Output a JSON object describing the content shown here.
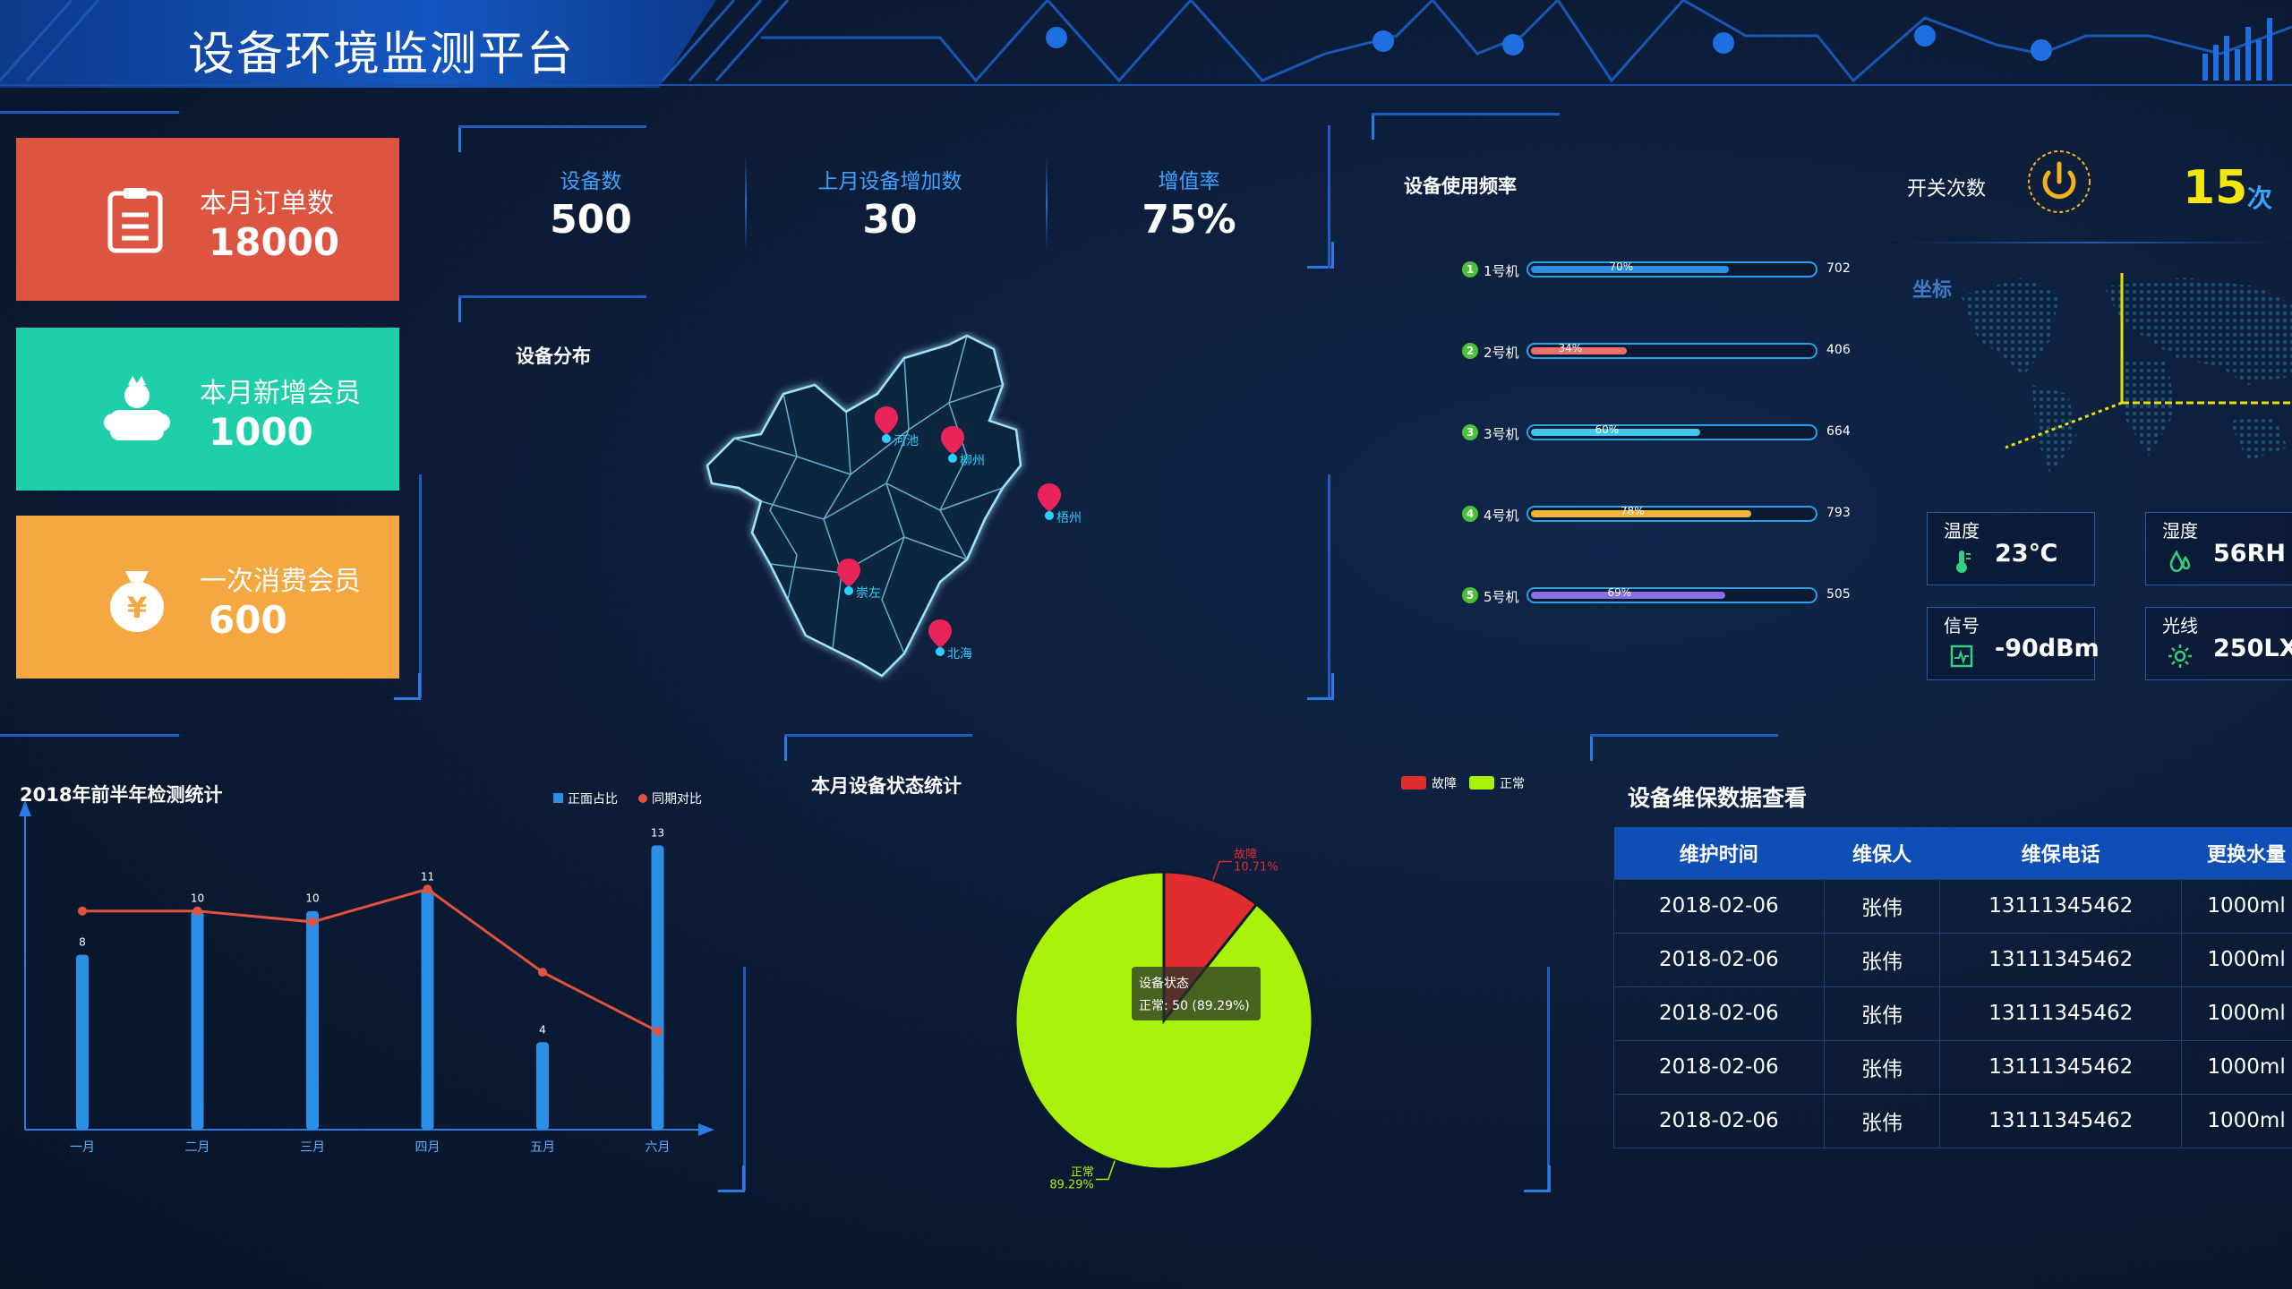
{
  "header": {
    "title": "设备环境监测平台"
  },
  "kpis": [
    {
      "label": "本月订单数",
      "value": "18000",
      "color": "#dd5441",
      "icon": "clipboard-icon"
    },
    {
      "label": "本月新增会员",
      "value": "1000",
      "color": "#1fcfaa",
      "icon": "member-icon"
    },
    {
      "label": "一次消费会员",
      "value": "600",
      "color": "#f5a741",
      "icon": "money-bag-icon"
    }
  ],
  "stats": [
    {
      "label": "设备数",
      "value": "500"
    },
    {
      "label": "上月设备增加数",
      "value": "30"
    },
    {
      "label": "增值率",
      "value": "75%"
    }
  ],
  "distribution": {
    "title": "设备分布",
    "markers": [
      "河池",
      "柳州",
      "梧州",
      "崇左",
      "北海"
    ]
  },
  "usage": {
    "title": "设备使用频率",
    "items": [
      {
        "rank": "1",
        "name": "1号机",
        "pct": 70,
        "pct_label": "70%",
        "value": "702",
        "color": "#2b8fe6"
      },
      {
        "rank": "2",
        "name": "2号机",
        "pct": 34,
        "pct_label": "34%",
        "value": "406",
        "color": "#f0706e"
      },
      {
        "rank": "3",
        "name": "3号机",
        "pct": 60,
        "pct_label": "60%",
        "value": "664",
        "color": "#3fc6ea"
      },
      {
        "rank": "4",
        "name": "4号机",
        "pct": 78,
        "pct_label": "78%",
        "value": "793",
        "color": "#f2b33d"
      },
      {
        "rank": "5",
        "name": "5号机",
        "pct": 69,
        "pct_label": "69%",
        "value": "505",
        "color": "#8a6de9"
      }
    ]
  },
  "switch": {
    "label": "开关次数",
    "value": "15",
    "unit": "次"
  },
  "coord": {
    "label": "坐标"
  },
  "env": [
    {
      "label": "温度",
      "value": "23℃",
      "icon": "thermometer-icon"
    },
    {
      "label": "湿度",
      "value": "56RH",
      "icon": "humidity-icon"
    },
    {
      "label": "信号",
      "value": "-90dBm",
      "icon": "signal-icon"
    },
    {
      "label": "光线",
      "value": "250LX",
      "icon": "sun-icon"
    }
  ],
  "chart_data": [
    {
      "type": "bar",
      "title": "2018年前半年检测统计",
      "categories": [
        "一月",
        "二月",
        "三月",
        "四月",
        "五月",
        "六月"
      ],
      "series": [
        {
          "name": "正面占比",
          "type": "bar",
          "values": [
            8,
            10,
            10,
            11,
            4,
            13
          ]
        },
        {
          "name": "同期对比",
          "type": "line",
          "values": [
            10,
            10,
            9.5,
            11,
            7.2,
            4.5
          ]
        }
      ],
      "ylim": [
        0,
        14
      ],
      "legend": "top-right"
    },
    {
      "type": "pie",
      "title": "本月设备状态统计",
      "legend_entries": [
        "故障",
        "正常"
      ],
      "slices": [
        {
          "name": "故障",
          "value": 6,
          "pct_label": "10.71%",
          "color": "#e12d2d"
        },
        {
          "name": "正常",
          "value": 50,
          "pct_label": "89.29%",
          "color": "#a8f20a"
        }
      ],
      "tooltip": {
        "title": "设备状态",
        "text": "正常: 50 (89.29%)"
      },
      "legend": "top-right"
    }
  ],
  "maintenance": {
    "title": "设备维保数据查看",
    "columns": [
      "维护时间",
      "维保人",
      "维保电话",
      "更换水量"
    ],
    "rows": [
      [
        "2018-02-06",
        "张伟",
        "13111345462",
        "1000ml"
      ],
      [
        "2018-02-06",
        "张伟",
        "13111345462",
        "1000ml"
      ],
      [
        "2018-02-06",
        "张伟",
        "13111345462",
        "1000ml"
      ],
      [
        "2018-02-06",
        "张伟",
        "13111345462",
        "1000ml"
      ],
      [
        "2018-02-06",
        "张伟",
        "13111345462",
        "1000ml"
      ]
    ]
  }
}
